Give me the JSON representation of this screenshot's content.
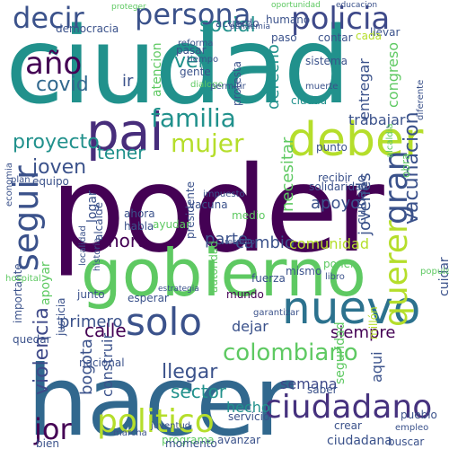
{
  "image": {
    "kind": "word cloud",
    "background": "#ffffff"
  },
  "palette": {
    "dark_purple": "#440154",
    "indigo": "#3b528b",
    "teal": "#21918c",
    "green": "#5ec962",
    "lime": "#b5de2b",
    "yellow": "#d8e219"
  },
  "words": [
    {
      "text": "ciudad",
      "color": "#21918c"
    },
    {
      "text": "poder",
      "color": "#440154"
    },
    {
      "text": "hacer",
      "color": "#31688e"
    },
    {
      "text": "gobierno",
      "color": "#5ec962"
    },
    {
      "text": "nuevo",
      "color": "#2c728e"
    },
    {
      "text": "deber",
      "color": "#b5de2b"
    },
    {
      "text": "pai",
      "color": "#472d7b"
    },
    {
      "text": "persona",
      "color": "#3b528b"
    },
    {
      "text": "policia",
      "color": "#3e4989"
    },
    {
      "text": "solo",
      "color": "#3b528b"
    },
    {
      "text": "ciudadano",
      "color": "#46327e"
    },
    {
      "text": "seguir",
      "color": "#3b528b"
    },
    {
      "text": "politico",
      "color": "#b5de2b"
    },
    {
      "text": "decir",
      "color": "#3b528b"
    },
    {
      "text": "familia",
      "color": "#21918c"
    },
    {
      "text": "mujer",
      "color": "#b5de2b"
    },
    {
      "text": "gran",
      "color": "#3b528b"
    },
    {
      "text": "querer",
      "color": "#b5de2b"
    },
    {
      "text": "año",
      "color": "#440154"
    },
    {
      "text": "colombiano",
      "color": "#5ec962"
    },
    {
      "text": "violencia",
      "color": "#3e4989"
    },
    {
      "text": "proyecto",
      "color": "#21918c"
    },
    {
      "text": "vacunacion",
      "color": "#3b528b"
    },
    {
      "text": "joven",
      "color": "#3b528b"
    },
    {
      "text": "covid",
      "color": "#31688e"
    },
    {
      "text": "social",
      "color": "#21918c"
    },
    {
      "text": "jor",
      "color": "#440154"
    },
    {
      "text": "tener",
      "color": "#21918c"
    },
    {
      "text": "calle",
      "color": "#440154"
    },
    {
      "text": "derecho",
      "color": "#21918c"
    },
    {
      "text": "hora",
      "color": "#440154"
    },
    {
      "text": "cambio",
      "color": "#3b528b"
    },
    {
      "text": "comunidad",
      "color": "#b5de2b"
    },
    {
      "text": "semana",
      "color": "#3e4989"
    },
    {
      "text": "llegar",
      "color": "#3b528b"
    },
    {
      "text": "sector",
      "color": "#21918c"
    },
    {
      "text": "siempre",
      "color": "#440154"
    },
    {
      "text": "bogota",
      "color": "#3b528b"
    },
    {
      "text": "primero",
      "color": "#3b528b"
    },
    {
      "text": "necesitar",
      "color": "#5ec962"
    },
    {
      "text": "apoyo",
      "color": "#3b528b"
    },
    {
      "text": "jovenes",
      "color": "#3b528b"
    },
    {
      "text": "parte",
      "color": "#3b528b"
    },
    {
      "text": "dejar",
      "color": "#3b528b"
    },
    {
      "text": "trabajar",
      "color": "#3b528b"
    },
    {
      "text": "hecho",
      "color": "#21918c"
    },
    {
      "text": "construir",
      "color": "#3b528b"
    },
    {
      "text": "seguridad",
      "color": "#5ec962"
    },
    {
      "text": "entregar",
      "color": "#3b528b"
    },
    {
      "text": "cuidado",
      "color": "#3b528b"
    },
    {
      "text": "atencion",
      "color": "#5ec962"
    },
    {
      "text": "democracia",
      "color": "#3b528b"
    },
    {
      "text": "llevar",
      "color": "#3b528b"
    },
    {
      "text": "ver",
      "color": "#21918c"
    },
    {
      "text": "ir",
      "color": "#3b528b"
    },
    {
      "text": "sistema",
      "color": "#3b528b"
    },
    {
      "text": "congreso",
      "color": "#5ec962"
    },
    {
      "text": "cuidar",
      "color": "#3b528b"
    },
    {
      "text": "apoyar",
      "color": "#5ec962"
    },
    {
      "text": "logar",
      "color": "#3b528b"
    },
    {
      "text": "alcalde",
      "color": "#3b528b"
    },
    {
      "text": "presidente",
      "color": "#3b528b"
    },
    {
      "text": "vacuna",
      "color": "#3b528b"
    },
    {
      "text": "solidaridad",
      "color": "#3b528b"
    },
    {
      "text": "ahora",
      "color": "#3b528b"
    },
    {
      "text": "habla",
      "color": "#3b528b"
    },
    {
      "text": "ayudar",
      "color": "#5ec962"
    },
    {
      "text": "medio",
      "color": "#5ec962"
    },
    {
      "text": "autoridad",
      "color": "#5ec962"
    },
    {
      "text": "junto",
      "color": "#3b528b"
    },
    {
      "text": "nacional",
      "color": "#3b528b"
    },
    {
      "text": "justicia",
      "color": "#3b528b"
    },
    {
      "text": "esperar",
      "color": "#3b528b"
    },
    {
      "text": "mismo",
      "color": "#3b528b"
    },
    {
      "text": "fuerza",
      "color": "#3b528b"
    },
    {
      "text": "libro",
      "color": "#3b528b"
    },
    {
      "text": "mundo",
      "color": "#440154"
    },
    {
      "text": "pueblo",
      "color": "#3b528b"
    },
    {
      "text": "bien",
      "color": "#3b528b"
    },
    {
      "text": "programa",
      "color": "#5ec962"
    },
    {
      "text": "momento",
      "color": "#3b528b"
    },
    {
      "text": "avanzar",
      "color": "#3b528b"
    },
    {
      "text": "ciudadana",
      "color": "#3b528b"
    },
    {
      "text": "buscar",
      "color": "#3b528b"
    },
    {
      "text": "empleo",
      "color": "#3b528b"
    },
    {
      "text": "crear",
      "color": "#3b528b"
    },
    {
      "text": "saber",
      "color": "#3b528b"
    },
    {
      "text": "servicio",
      "color": "#3b528b"
    },
    {
      "text": "marcha",
      "color": "#3b528b"
    },
    {
      "text": "recibir",
      "color": "#3b528b"
    },
    {
      "text": "punto",
      "color": "#3b528b"
    },
    {
      "text": "equipo",
      "color": "#3b528b"
    },
    {
      "text": "plan",
      "color": "#3b528b"
    },
    {
      "text": "gente",
      "color": "#3b528b"
    },
    {
      "text": "tiempo",
      "color": "#3b528b"
    },
    {
      "text": "pasar",
      "color": "#3b528b"
    },
    {
      "text": "acuerdo",
      "color": "#3b528b"
    },
    {
      "text": "humano",
      "color": "#3b528b"
    },
    {
      "text": "oportunidad",
      "color": "#5ec962"
    },
    {
      "text": "educacion",
      "color": "#3b528b"
    },
    {
      "text": "contar",
      "color": "#3b528b"
    },
    {
      "text": "cada",
      "color": "#b5de2b"
    },
    {
      "text": "paso",
      "color": "#3b528b"
    },
    {
      "text": "ciudad",
      "color": "#21918c"
    },
    {
      "text": "reforma",
      "color": "#3b528b"
    },
    {
      "text": "dialogo",
      "color": "#5ec962"
    },
    {
      "text": "permitir",
      "color": "#3b528b"
    },
    {
      "text": "protesta",
      "color": "#3b528b"
    },
    {
      "text": "muerte",
      "color": "#3b528b"
    },
    {
      "text": "diferente",
      "color": "#3b528b"
    },
    {
      "text": "importante",
      "color": "#3b528b"
    },
    {
      "text": "historia",
      "color": "#3b528b"
    },
    {
      "text": "localidad",
      "color": "#3b528b"
    },
    {
      "text": "poner",
      "color": "#5ec962"
    },
    {
      "text": "aqui",
      "color": "#3b528b"
    },
    {
      "text": "obra",
      "color": "#5ec962"
    },
    {
      "text": "alcaldia",
      "color": "#5ec962"
    },
    {
      "text": "economia",
      "color": "#3b528b"
    },
    {
      "text": "hospital",
      "color": "#5ec962"
    },
    {
      "text": "quedar",
      "color": "#3b528b"
    },
    {
      "text": "proteger",
      "color": "#5ec962"
    },
    {
      "text": "respeto",
      "color": "#3b528b"
    },
    {
      "text": "impuesto",
      "color": "#3b528b"
    },
    {
      "text": "juventud",
      "color": "#3b528b"
    },
    {
      "text": "millón",
      "color": "#b5de2b"
    },
    {
      "text": "popular",
      "color": "#5ec962"
    },
    {
      "text": "garantizar",
      "color": "#3b528b"
    },
    {
      "text": "estrategia",
      "color": "#3b528b"
    },
    {
      "text": "pandemia",
      "color": "#3b528b"
    }
  ]
}
